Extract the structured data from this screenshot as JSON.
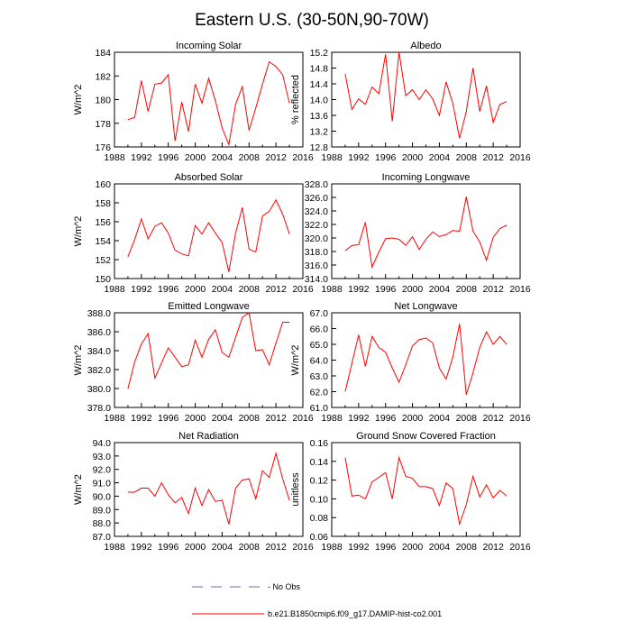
{
  "figure": {
    "title": "Eastern U.S. (30-50N,90-70W)"
  },
  "legend": {
    "items": [
      {
        "label": "- No Obs",
        "color": "#6a6ab0",
        "dashed": true
      },
      {
        "label": "b.e21.B1850cmip6.f09_g17.DAMIP-hist-co2.001",
        "color": "#ff0000",
        "dashed": false
      }
    ]
  },
  "chart_data": [
    {
      "type": "line",
      "title": "Incoming Solar",
      "ylabel": "W/m^2",
      "xlim": [
        1988,
        2016
      ],
      "ylim": [
        176,
        184
      ],
      "xticks": [
        1988,
        1992,
        1996,
        2000,
        2004,
        2008,
        2012,
        2016
      ],
      "yticks": [
        "176",
        "178",
        "180",
        "182",
        "184"
      ],
      "series": [
        {
          "color": "#ff0000",
          "x": [
            1990,
            1991,
            1992,
            1993,
            1994,
            1995,
            1996,
            1997,
            1998,
            1999,
            2000,
            2001,
            2002,
            2003,
            2004,
            2005,
            2006,
            2007,
            2008,
            2009,
            2010,
            2011,
            2012,
            2013,
            2014
          ],
          "y": [
            178.3,
            178.5,
            181.6,
            179.0,
            181.3,
            181.4,
            182.1,
            176.5,
            179.8,
            177.3,
            181.3,
            179.7,
            181.8,
            179.9,
            177.6,
            176.2,
            179.6,
            181.1,
            177.4,
            179.3,
            181.3,
            183.2,
            182.8,
            182.1,
            179.7
          ]
        }
      ]
    },
    {
      "type": "line",
      "title": "Albedo",
      "ylabel": "% reflected",
      "xlim": [
        1988,
        2016
      ],
      "ylim": [
        12.8,
        15.2
      ],
      "xticks": [
        1988,
        1992,
        1996,
        2000,
        2004,
        2008,
        2012,
        2016
      ],
      "yticks": [
        "12.8",
        "13.2",
        "13.6",
        "14.0",
        "14.4",
        "14.8",
        "15.2"
      ],
      "series": [
        {
          "color": "#ff0000",
          "x": [
            1990,
            1991,
            1992,
            1993,
            1994,
            1995,
            1996,
            1997,
            1998,
            1999,
            2000,
            2001,
            2002,
            2003,
            2004,
            2005,
            2006,
            2007,
            2008,
            2009,
            2010,
            2011,
            2012,
            2013,
            2014
          ],
          "y": [
            14.65,
            13.75,
            14.02,
            13.88,
            14.32,
            14.15,
            15.15,
            13.45,
            15.2,
            14.1,
            14.25,
            14.0,
            14.25,
            14.02,
            13.6,
            14.45,
            13.9,
            13.02,
            13.7,
            14.8,
            13.7,
            14.35,
            13.42,
            13.88,
            13.95
          ]
        }
      ]
    },
    {
      "type": "line",
      "title": "Absorbed Solar",
      "ylabel": "W/m^2",
      "xlim": [
        1988,
        2016
      ],
      "ylim": [
        150,
        160
      ],
      "xticks": [
        1988,
        1992,
        1996,
        2000,
        2004,
        2008,
        2012,
        2016
      ],
      "yticks": [
        "150",
        "152",
        "154",
        "156",
        "158",
        "160"
      ],
      "series": [
        {
          "color": "#ff0000",
          "x": [
            1990,
            1991,
            1992,
            1993,
            1994,
            1995,
            1996,
            1997,
            1998,
            1999,
            2000,
            2001,
            2002,
            2003,
            2004,
            2005,
            2006,
            2007,
            2008,
            2009,
            2010,
            2011,
            2012,
            2013,
            2014
          ],
          "y": [
            152.3,
            154.1,
            156.3,
            154.2,
            155.5,
            155.9,
            154.8,
            153.0,
            152.6,
            152.4,
            155.6,
            154.7,
            155.9,
            154.8,
            153.8,
            150.7,
            154.8,
            157.5,
            153.1,
            152.8,
            156.6,
            157.1,
            158.3,
            156.8,
            154.7
          ]
        }
      ]
    },
    {
      "type": "line",
      "title": "Incoming Longwave",
      "ylabel": "",
      "xlim": [
        1988,
        2016
      ],
      "ylim": [
        314,
        328
      ],
      "xticks": [
        1988,
        1992,
        1996,
        2000,
        2004,
        2008,
        2012,
        2016
      ],
      "yticks": [
        "314.0",
        "316.0",
        "318.0",
        "320.0",
        "322.0",
        "324.0",
        "326.0",
        "328.0"
      ],
      "series": [
        {
          "color": "#ff0000",
          "x": [
            1990,
            1991,
            1992,
            1993,
            1994,
            1995,
            1996,
            1997,
            1998,
            1999,
            2000,
            2001,
            2002,
            2003,
            2004,
            2005,
            2006,
            2007,
            2008,
            2009,
            2010,
            2011,
            2012,
            2013,
            2014
          ],
          "y": [
            318.1,
            318.9,
            319.0,
            322.3,
            315.7,
            317.9,
            319.9,
            320.0,
            319.8,
            318.9,
            320.2,
            318.3,
            319.8,
            320.9,
            320.2,
            320.5,
            321.1,
            321.0,
            326.1,
            321.0,
            319.4,
            316.7,
            320.1,
            321.4,
            321.9
          ]
        }
      ]
    },
    {
      "type": "line",
      "title": "Emitted Longwave",
      "ylabel": "W/m^2",
      "xlim": [
        1988,
        2016
      ],
      "ylim": [
        378,
        388
      ],
      "xticks": [
        1988,
        1992,
        1996,
        2000,
        2004,
        2008,
        2012,
        2016
      ],
      "yticks": [
        "378.0",
        "380.0",
        "382.0",
        "384.0",
        "386.0",
        "388.0"
      ],
      "series": [
        {
          "color": "#ff0000",
          "x": [
            1990,
            1991,
            1992,
            1993,
            1994,
            1995,
            1996,
            1997,
            1998,
            1999,
            2000,
            2001,
            2002,
            2003,
            2004,
            2005,
            2006,
            2007,
            2008,
            2009,
            2010,
            2011,
            2012,
            2013,
            2014
          ],
          "y": [
            380.0,
            382.8,
            384.7,
            385.8,
            381.1,
            382.7,
            384.3,
            383.3,
            382.3,
            382.5,
            385.1,
            383.3,
            385.2,
            386.2,
            383.8,
            383.3,
            385.4,
            387.5,
            388.0,
            384.0,
            384.1,
            382.5,
            384.8,
            387.0,
            387.0
          ]
        }
      ]
    },
    {
      "type": "line",
      "title": "Net Longwave",
      "ylabel": "W/m^2",
      "xlim": [
        1988,
        2016
      ],
      "ylim": [
        61,
        67
      ],
      "xticks": [
        1988,
        1992,
        1996,
        2000,
        2004,
        2008,
        2012,
        2016
      ],
      "yticks": [
        "61.0",
        "62.0",
        "63.0",
        "64.0",
        "65.0",
        "66.0",
        "67.0"
      ],
      "series": [
        {
          "color": "#ff0000",
          "x": [
            1990,
            1991,
            1992,
            1993,
            1994,
            1995,
            1996,
            1997,
            1998,
            1999,
            2000,
            2001,
            2002,
            2003,
            2004,
            2005,
            2006,
            2007,
            2008,
            2009,
            2010,
            2011,
            2012,
            2013,
            2014
          ],
          "y": [
            62.0,
            63.8,
            65.6,
            63.6,
            65.5,
            64.8,
            64.5,
            63.5,
            62.6,
            63.7,
            64.9,
            65.3,
            65.4,
            65.1,
            63.5,
            62.8,
            64.2,
            66.3,
            61.8,
            63.2,
            64.8,
            65.8,
            65.0,
            65.5,
            65.0
          ]
        }
      ]
    },
    {
      "type": "line",
      "title": "Net Radiation",
      "ylabel": "W/m^2",
      "xlim": [
        1988,
        2016
      ],
      "ylim": [
        87,
        94
      ],
      "xticks": [
        1988,
        1992,
        1996,
        2000,
        2004,
        2008,
        2012,
        2016
      ],
      "yticks": [
        "87.0",
        "88.0",
        "89.0",
        "90.0",
        "91.0",
        "92.0",
        "93.0",
        "94.0"
      ],
      "series": [
        {
          "color": "#ff0000",
          "x": [
            1990,
            1991,
            1992,
            1993,
            1994,
            1995,
            1996,
            1997,
            1998,
            1999,
            2000,
            2001,
            2002,
            2003,
            2004,
            2005,
            2006,
            2007,
            2008,
            2009,
            2010,
            2011,
            2012,
            2013,
            2014
          ],
          "y": [
            90.3,
            90.3,
            90.6,
            90.6,
            90.0,
            91.0,
            90.1,
            89.5,
            89.9,
            88.7,
            90.6,
            89.3,
            90.5,
            89.6,
            89.7,
            87.9,
            90.6,
            91.2,
            91.3,
            89.8,
            91.9,
            91.4,
            93.2,
            91.3,
            89.7
          ]
        }
      ]
    },
    {
      "type": "line",
      "title": "Ground Snow Covered Fraction",
      "ylabel": "unitless",
      "xlim": [
        1988,
        2016
      ],
      "ylim": [
        0.06,
        0.16
      ],
      "xticks": [
        1988,
        1992,
        1996,
        2000,
        2004,
        2008,
        2012,
        2016
      ],
      "yticks": [
        "0.06",
        "0.08",
        "0.10",
        "0.12",
        "0.14",
        "0.16"
      ],
      "series": [
        {
          "color": "#ff0000",
          "x": [
            1990,
            1991,
            1992,
            1993,
            1994,
            1995,
            1996,
            1997,
            1998,
            1999,
            2000,
            2001,
            2002,
            2003,
            2004,
            2005,
            2006,
            2007,
            2008,
            2009,
            2010,
            2011,
            2012,
            2013,
            2014
          ],
          "y": [
            0.144,
            0.103,
            0.104,
            0.1,
            0.118,
            0.123,
            0.128,
            0.1,
            0.144,
            0.124,
            0.122,
            0.113,
            0.113,
            0.111,
            0.093,
            0.117,
            0.111,
            0.073,
            0.094,
            0.124,
            0.102,
            0.115,
            0.101,
            0.109,
            0.103
          ]
        }
      ]
    }
  ]
}
